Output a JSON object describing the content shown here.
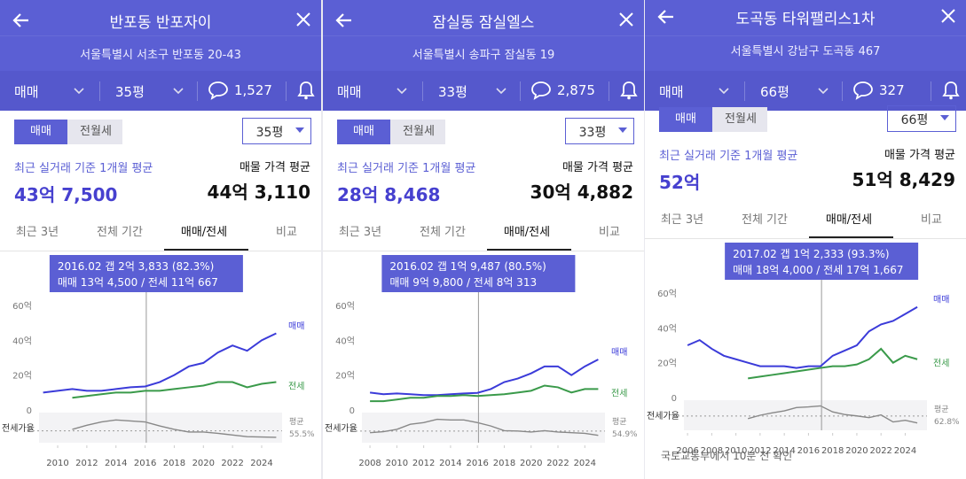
{
  "panels": [
    {
      "header": {
        "title": "반포동 반포자이",
        "address": "서울특별시 서초구 반포동 20-43"
      },
      "filters": {
        "deal": "매매",
        "size": "35평",
        "comments": "1,527"
      },
      "toggle": [
        "매매",
        "전월세"
      ],
      "size_select": "35평",
      "recent": {
        "label": "최근 실거래 기준 1개월 평균",
        "price": "43억 7,500"
      },
      "listing": {
        "label": "매물 가격 평균",
        "price": "44억 3,110"
      },
      "tabs": [
        "최근 3년",
        "전체 기간",
        "매매/전세",
        "비교"
      ],
      "chart_data": {
        "type": "line",
        "x": [
          2009,
          2010,
          2011,
          2012,
          2013,
          2014,
          2015,
          2016,
          2017,
          2018,
          2019,
          2020,
          2021,
          2022,
          2023,
          2024,
          2025
        ],
        "series": [
          {
            "name": "매매",
            "color": "#3b3bd9",
            "values": [
              10,
              11,
              12,
              11,
              11,
              12,
              13,
              13.5,
              16,
              20,
              25,
              27,
              33,
              37,
              34,
              40,
              44
            ]
          },
          {
            "name": "전세",
            "color": "#3a9a4a",
            "values": [
              null,
              null,
              7,
              8,
              9,
              10,
              10,
              11,
              11,
              12,
              13,
              14,
              16,
              16,
              13,
              15,
              16
            ]
          }
        ],
        "xlim": [
          2008.72,
          2025.4
        ],
        "ylim": [
          0,
          60
        ],
        "yticks": [
          0,
          {
            "value": 20,
            "label": "20억"
          },
          {
            "value": 40,
            "label": "40억"
          },
          {
            "value": 60,
            "label": "60억"
          }
        ],
        "xticks": [
          2010,
          2012,
          2014,
          2016,
          2018,
          2020,
          2022,
          2024
        ],
        "tooltip": [
          "2016.02  갭 2억 3,833 (82.3%)",
          "매매 13억 4,500 / 전세 11억 667"
        ],
        "cursor_x": 2016.08,
        "ratio": {
          "label": "전세가율",
          "values": [
            null,
            null,
            60,
            72,
            82,
            88,
            85,
            82,
            70,
            60,
            52,
            52,
            48,
            43,
            38,
            37,
            36
          ],
          "ylim": [
            20,
            110
          ],
          "average_label": "평균",
          "average": {
            "value": 55.5,
            "label": "55.5%"
          }
        }
      }
    },
    {
      "header": {
        "title": "잠실동 잠실엘스",
        "address": "서울특별시 송파구 잠실동 19"
      },
      "filters": {
        "deal": "매매",
        "size": "33평",
        "comments": "2,875"
      },
      "toggle": [
        "매매",
        "전월세"
      ],
      "size_select": "33평",
      "recent": {
        "label": "최근 실거래 기준 1개월 평균",
        "price": "28억 8,468"
      },
      "listing": {
        "label": "매물 가격 평균",
        "price": "30억 4,882"
      },
      "tabs": [
        "최근 3년",
        "전체 기간",
        "매매/전세",
        "비교"
      ],
      "chart_data": {
        "type": "line",
        "x": [
          2008,
          2009,
          2010,
          2011,
          2012,
          2013,
          2014,
          2015,
          2016,
          2017,
          2018,
          2019,
          2020,
          2021,
          2022,
          2023,
          2024,
          2025
        ],
        "series": [
          {
            "name": "매매",
            "color": "#3b3bd9",
            "values": [
              10,
              9,
              9.5,
              9,
              8.5,
              8.5,
              9,
              9.5,
              9.8,
              12,
              16,
              18,
              21,
              25,
              25,
              20,
              25,
              29
            ]
          },
          {
            "name": "전세",
            "color": "#3a9a4a",
            "values": [
              5,
              5,
              6,
              7,
              7,
              8,
              8,
              8.5,
              8,
              8.5,
              9,
              10,
              11,
              14,
              13,
              10,
              12,
              12
            ]
          }
        ],
        "xlim": [
          2007.4,
          2025.5
        ],
        "ylim": [
          0,
          60
        ],
        "yticks": [
          0,
          {
            "value": 20,
            "label": "20억"
          },
          {
            "value": 40,
            "label": "40억"
          },
          {
            "value": 60,
            "label": "60억"
          }
        ],
        "xticks": [
          2008,
          2010,
          2012,
          2014,
          2016,
          2018,
          2020,
          2022,
          2024
        ],
        "tooltip": [
          "2016.02  갭 1억 9,487 (80.5%)",
          "매매 9억 9,800 / 전세 8억 313"
        ],
        "cursor_x": 2016.08,
        "ratio": {
          "label": "전세가율",
          "values": [
            50,
            53,
            60,
            75,
            80,
            90,
            88,
            88,
            80,
            70,
            56,
            55,
            52,
            56,
            52,
            50,
            48,
            42
          ],
          "ylim": [
            20,
            110
          ],
          "average_label": "평균",
          "average": {
            "value": 54.9,
            "label": "54.9%"
          }
        }
      }
    },
    {
      "header": {
        "title": "도곡동 타워팰리스1차",
        "address": "서울특별시 강남구 도곡동 467"
      },
      "filters": {
        "deal": "매매",
        "size": "66평",
        "comments": "327"
      },
      "toggle": [
        "매매",
        "전월세"
      ],
      "size_select": "66평",
      "recent": {
        "label": "최근 실거래 기준 1개월 평균",
        "price": "52억"
      },
      "listing": {
        "label": "매물 가격 평균",
        "price": "51억 8,429"
      },
      "tabs": [
        "최근 3년",
        "전체 기간",
        "매매/전세",
        "비교"
      ],
      "chart_data": {
        "type": "line",
        "x": [
          2006,
          2007,
          2008,
          2009,
          2010,
          2011,
          2012,
          2013,
          2014,
          2015,
          2016,
          2017,
          2018,
          2019,
          2020,
          2021,
          2022,
          2023,
          2024,
          2025
        ],
        "series": [
          {
            "name": "매매",
            "color": "#3b3bd9",
            "values": [
              30,
              33,
              28,
              24,
              22,
              20,
              18,
              18,
              18,
              17,
              18,
              18,
              24,
              27,
              30,
              38,
              42,
              44,
              48,
              52
            ]
          },
          {
            "name": "전세",
            "color": "#3a9a4a",
            "values": [
              null,
              null,
              null,
              null,
              null,
              11,
              12,
              13,
              14,
              15,
              16,
              17,
              18,
              18,
              19,
              22,
              28,
              20,
              24,
              22
            ]
          }
        ],
        "xlim": [
          2005.7,
          2025.8
        ],
        "ylim": [
          0,
          60
        ],
        "yticks": [
          0,
          {
            "value": 20,
            "label": "20억"
          },
          {
            "value": 40,
            "label": "40억"
          },
          {
            "value": 60,
            "label": "60억"
          }
        ],
        "xticks": [
          2006,
          2008,
          2010,
          2012,
          2014,
          2016,
          2018,
          2020,
          2022,
          2024
        ],
        "tooltip": [
          "2017.02  갭 1억 2,333 (93.3%)",
          "매매 18억 4,000 / 전세 17억 1,667"
        ],
        "cursor_x": 2017.08,
        "ratio": {
          "label": "전세가율",
          "values": [
            null,
            null,
            null,
            null,
            null,
            55,
            65,
            72,
            78,
            88,
            90,
            93,
            75,
            67,
            63,
            58,
            66,
            45,
            50,
            42
          ],
          "ylim": [
            20,
            110
          ],
          "average_label": "평균",
          "average": {
            "value": 62.8,
            "label": "62.8%"
          }
        }
      },
      "footer": "국토교통부에서 10분 전 확인"
    }
  ]
}
